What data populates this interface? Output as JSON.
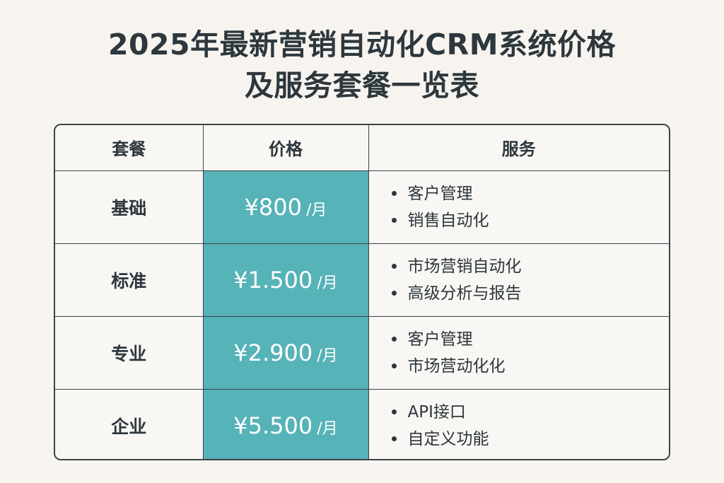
{
  "title": {
    "line1": "2025年最新营销自动化CRM系统价格",
    "line2": "及服务套餐一览表"
  },
  "table": {
    "headers": [
      "套餐",
      "价格",
      "服务"
    ],
    "rows": [
      {
        "plan": "基础",
        "price": "¥800",
        "unit": "/月",
        "services": [
          "客户管理",
          "销售自动化"
        ]
      },
      {
        "plan": "标准",
        "price": "¥1.500",
        "unit": "/月",
        "services": [
          "市场营销自动化",
          "高级分析与报告"
        ]
      },
      {
        "plan": "专业",
        "price": "¥2.900",
        "unit": "/月",
        "services": [
          "客户管理",
          "市场营动化化"
        ]
      },
      {
        "plan": "企业",
        "price": "¥5.500",
        "unit": "/月",
        "services": [
          "API接口",
          "自定义功能"
        ]
      }
    ]
  },
  "colors": {
    "price_cell": "#56b3b8",
    "background": "#f7f4ef",
    "text": "#2d373d"
  }
}
